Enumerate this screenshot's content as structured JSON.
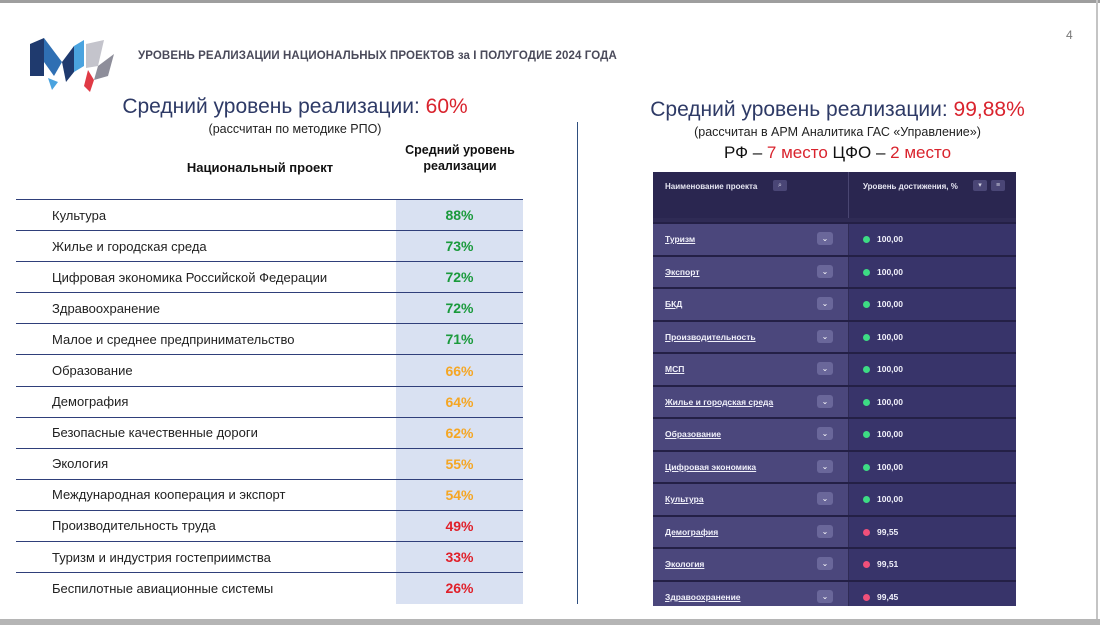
{
  "header": {
    "title": "УРОВЕНЬ РЕАЛИЗАЦИИ НАЦИОНАЛЬНЫХ ПРОЕКТОВ за  I ПОЛУГОДИЕ 2024 ГОДА",
    "page_number": "4"
  },
  "left": {
    "heading": "Средний уровень реализации:",
    "heading_value": "60%",
    "subheading": "(рассчитан по методике РПО)",
    "col_project": "Национальный проект",
    "col_level": "Средний уровень реализации",
    "rows": [
      {
        "name": "Культура",
        "value": "88%",
        "color": "#1a9a3c"
      },
      {
        "name": "Жилье и городская среда",
        "value": "73%",
        "color": "#1a9a3c"
      },
      {
        "name": "Цифровая экономика Российской Федерации",
        "value": "72%",
        "color": "#1a9a3c"
      },
      {
        "name": "Здравоохранение",
        "value": "72%",
        "color": "#1a9a3c"
      },
      {
        "name": "Малое и среднее предпринимательство",
        "value": "71%",
        "color": "#1a9a3c"
      },
      {
        "name": "Образование",
        "value": "66%",
        "color": "#f5a623"
      },
      {
        "name": "Демография",
        "value": "64%",
        "color": "#f5a623"
      },
      {
        "name": "Безопасные качественные дороги",
        "value": "62%",
        "color": "#f5a623"
      },
      {
        "name": "Экология",
        "value": "55%",
        "color": "#f5a623"
      },
      {
        "name": "Международная кооперация и экспорт",
        "value": "54%",
        "color": "#f5a623"
      },
      {
        "name": "Производительность труда",
        "value": "49%",
        "color": "#e0202a"
      },
      {
        "name": "Туризм и индустрия гостеприимства",
        "value": "33%",
        "color": "#e0202a"
      },
      {
        "name": "Беспилотные авиационные системы",
        "value": "26%",
        "color": "#e0202a"
      }
    ]
  },
  "right": {
    "heading": "Средний уровень реализации:",
    "heading_value": "99,88%",
    "subheading": "(рассчитан в АРМ Аналитика ГАС «Управление»)",
    "rank_prefix": "РФ –",
    "rank_rf": "7 место",
    "rank_mid": "ЦФО –",
    "rank_cfo": "2 место",
    "dashboard": {
      "col_name": "Наименование проекта",
      "col_level": "Уровень достижения, %",
      "rows": [
        {
          "name": "Туризм",
          "value": "100,00",
          "status_color": "#3ddc84"
        },
        {
          "name": "Экспорт",
          "value": "100,00",
          "status_color": "#3ddc84"
        },
        {
          "name": "БКД",
          "value": "100,00",
          "status_color": "#3ddc84"
        },
        {
          "name": "Производительность",
          "value": "100,00",
          "status_color": "#3ddc84"
        },
        {
          "name": "МСП",
          "value": "100,00",
          "status_color": "#3ddc84"
        },
        {
          "name": "Жилье и городская среда",
          "value": "100,00",
          "status_color": "#3ddc84"
        },
        {
          "name": "Образование",
          "value": "100,00",
          "status_color": "#3ddc84"
        },
        {
          "name": "Цифровая экономика",
          "value": "100,00",
          "status_color": "#3ddc84"
        },
        {
          "name": "Культура",
          "value": "100,00",
          "status_color": "#3ddc84"
        },
        {
          "name": "Демография",
          "value": "99,55",
          "status_color": "#f0507a"
        },
        {
          "name": "Экология",
          "value": "99,51",
          "status_color": "#f0507a"
        },
        {
          "name": "Здравоохранение",
          "value": "99,45",
          "status_color": "#f0507a"
        }
      ]
    }
  }
}
